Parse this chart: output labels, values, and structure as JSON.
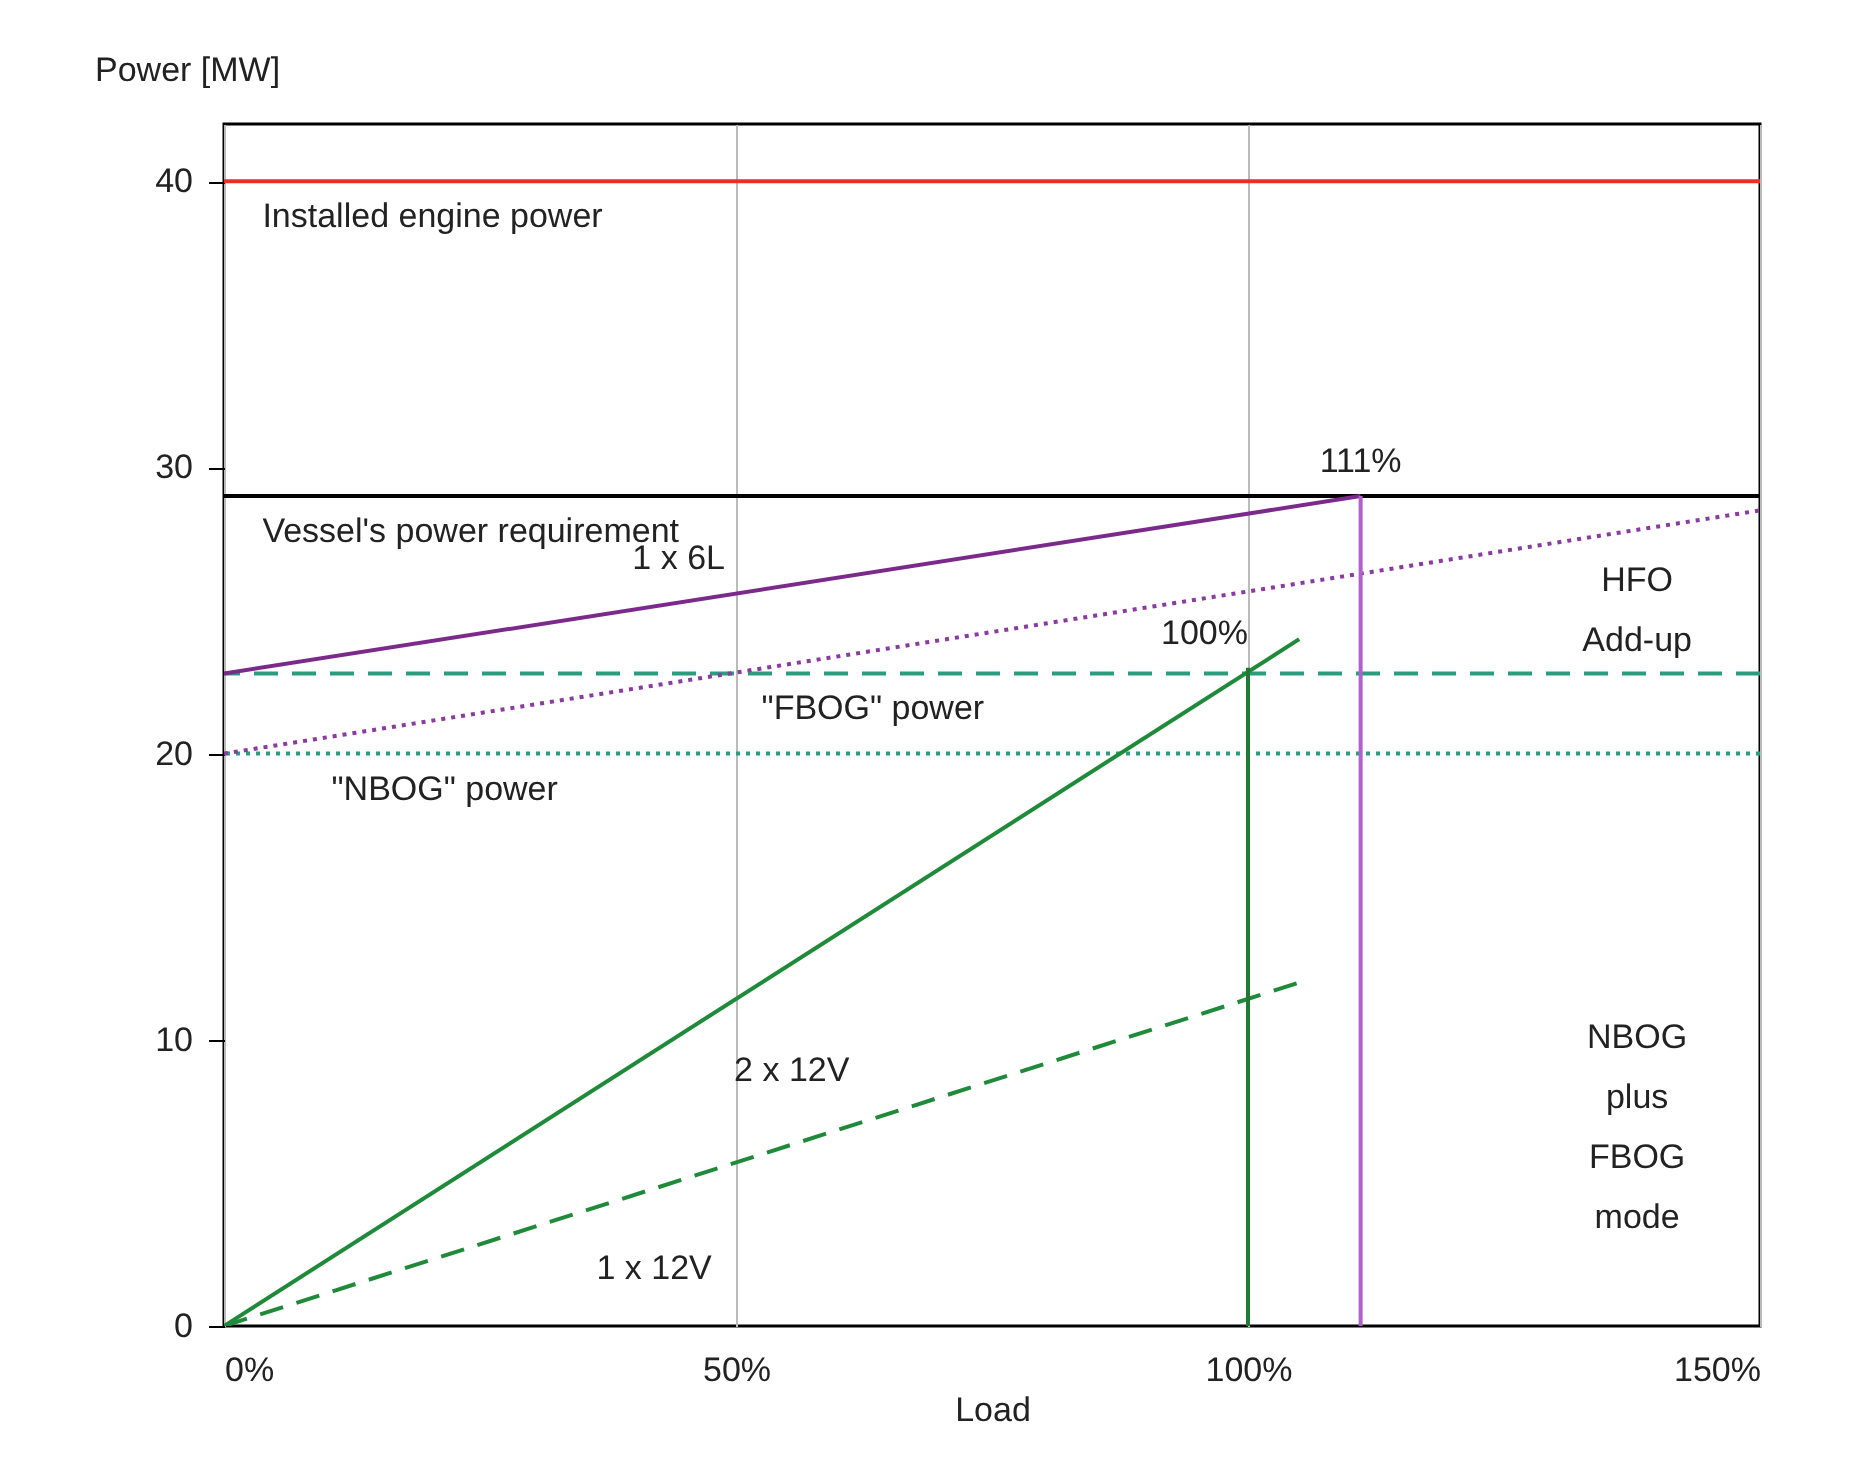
{
  "chart_data": {
    "type": "line",
    "xlabel": "Load",
    "ylabel": "Power [MW]",
    "xlim": [
      0,
      150
    ],
    "xticks": [
      {
        "value": 0,
        "label": "0%"
      },
      {
        "value": 50,
        "label": "50%"
      },
      {
        "value": 100,
        "label": "100%"
      },
      {
        "value": 150,
        "label": "150%"
      }
    ],
    "ylim": [
      0,
      42
    ],
    "yticks": [
      0,
      10,
      20,
      30,
      40
    ],
    "grid": "x",
    "series": [
      {
        "name": "1 x 6L",
        "color": "#7b2a8c",
        "x": [
          0,
          111
        ],
        "values": [
          22.8,
          29
        ],
        "line_style": "solid"
      },
      {
        "color": "#8a3aa0",
        "x": [
          0,
          150
        ],
        "values": [
          20,
          28.5
        ],
        "line_style": "dotted"
      },
      {
        "name": "2 x 12V",
        "color": "#1f8a3a",
        "x": [
          0,
          105
        ],
        "values": [
          0,
          24
        ],
        "line_style": "solid"
      },
      {
        "name": "1 x 12V",
        "color": "#1f8a3a",
        "x": [
          0,
          105
        ],
        "values": [
          0,
          12
        ],
        "line_style": "dashed"
      },
      {
        "color": "#1f7a34",
        "x": [
          100,
          100
        ],
        "values": [
          0,
          23
        ],
        "line_style": "solid"
      },
      {
        "color": "#b060c8",
        "x": [
          111,
          111
        ],
        "values": [
          0,
          29
        ],
        "line_style": "solid"
      }
    ],
    "ref_lines": [
      {
        "axis": "y",
        "value": 40,
        "label": "Installed engine power",
        "color": "#e8302a",
        "line_style": "solid"
      },
      {
        "axis": "y",
        "value": 29,
        "label": "Vessel's power requirement",
        "color": "#000000",
        "line_style": "solid"
      },
      {
        "axis": "y",
        "value": 22.8,
        "label": "\"FBOG\" power",
        "color": "#2a9d7f",
        "line_style": "dashed"
      },
      {
        "axis": "y",
        "value": 20,
        "label": "\"NBOG\" power",
        "color": "#2a9d7f",
        "line_style": "dotted"
      }
    ],
    "annotations": [
      {
        "text": "111%",
        "x": 111,
        "y": 29
      },
      {
        "text": "100%",
        "x": 100,
        "y": 23
      },
      "HFO Add-up",
      "NBOG plus FBOG mode"
    ]
  }
}
